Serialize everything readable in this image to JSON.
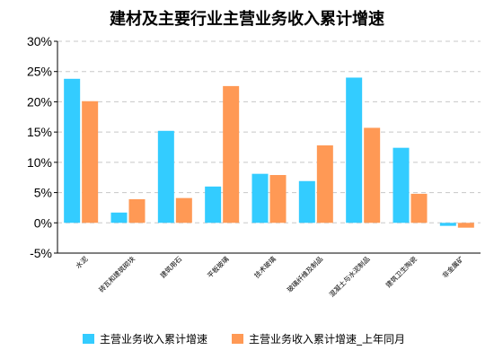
{
  "chart_data": {
    "type": "bar",
    "title": "建材及主要行业主营业务收入累计增速",
    "categories": [
      "水泥",
      "砖瓦和建筑砌块",
      "建筑用石",
      "平板玻璃",
      "技术玻璃",
      "玻璃纤维及制品",
      "混凝土与水泥制品",
      "建筑卫生陶瓷",
      "非金属矿"
    ],
    "series": [
      {
        "name": "主营业务收入累计增速",
        "values": [
          23.8,
          1.7,
          15.2,
          6.0,
          8.1,
          6.9,
          24.0,
          12.4,
          -0.5
        ]
      },
      {
        "name": "主营业务收入累计增速_上年同月",
        "values": [
          20.1,
          3.9,
          4.1,
          22.6,
          7.9,
          12.8,
          15.7,
          4.8,
          -0.8
        ]
      }
    ],
    "y_unit": "%",
    "ylim": [
      -5,
      30
    ],
    "yticks": [
      30,
      25,
      20,
      15,
      10,
      5,
      0,
      -5
    ],
    "ytick_labels": [
      "30%",
      "25%",
      "20%",
      "15%",
      "10%",
      "5%",
      "0%",
      "-5%"
    ],
    "colors": [
      "#33ccff",
      "#ff9955"
    ],
    "grid": true,
    "legend_position": "bottom"
  }
}
